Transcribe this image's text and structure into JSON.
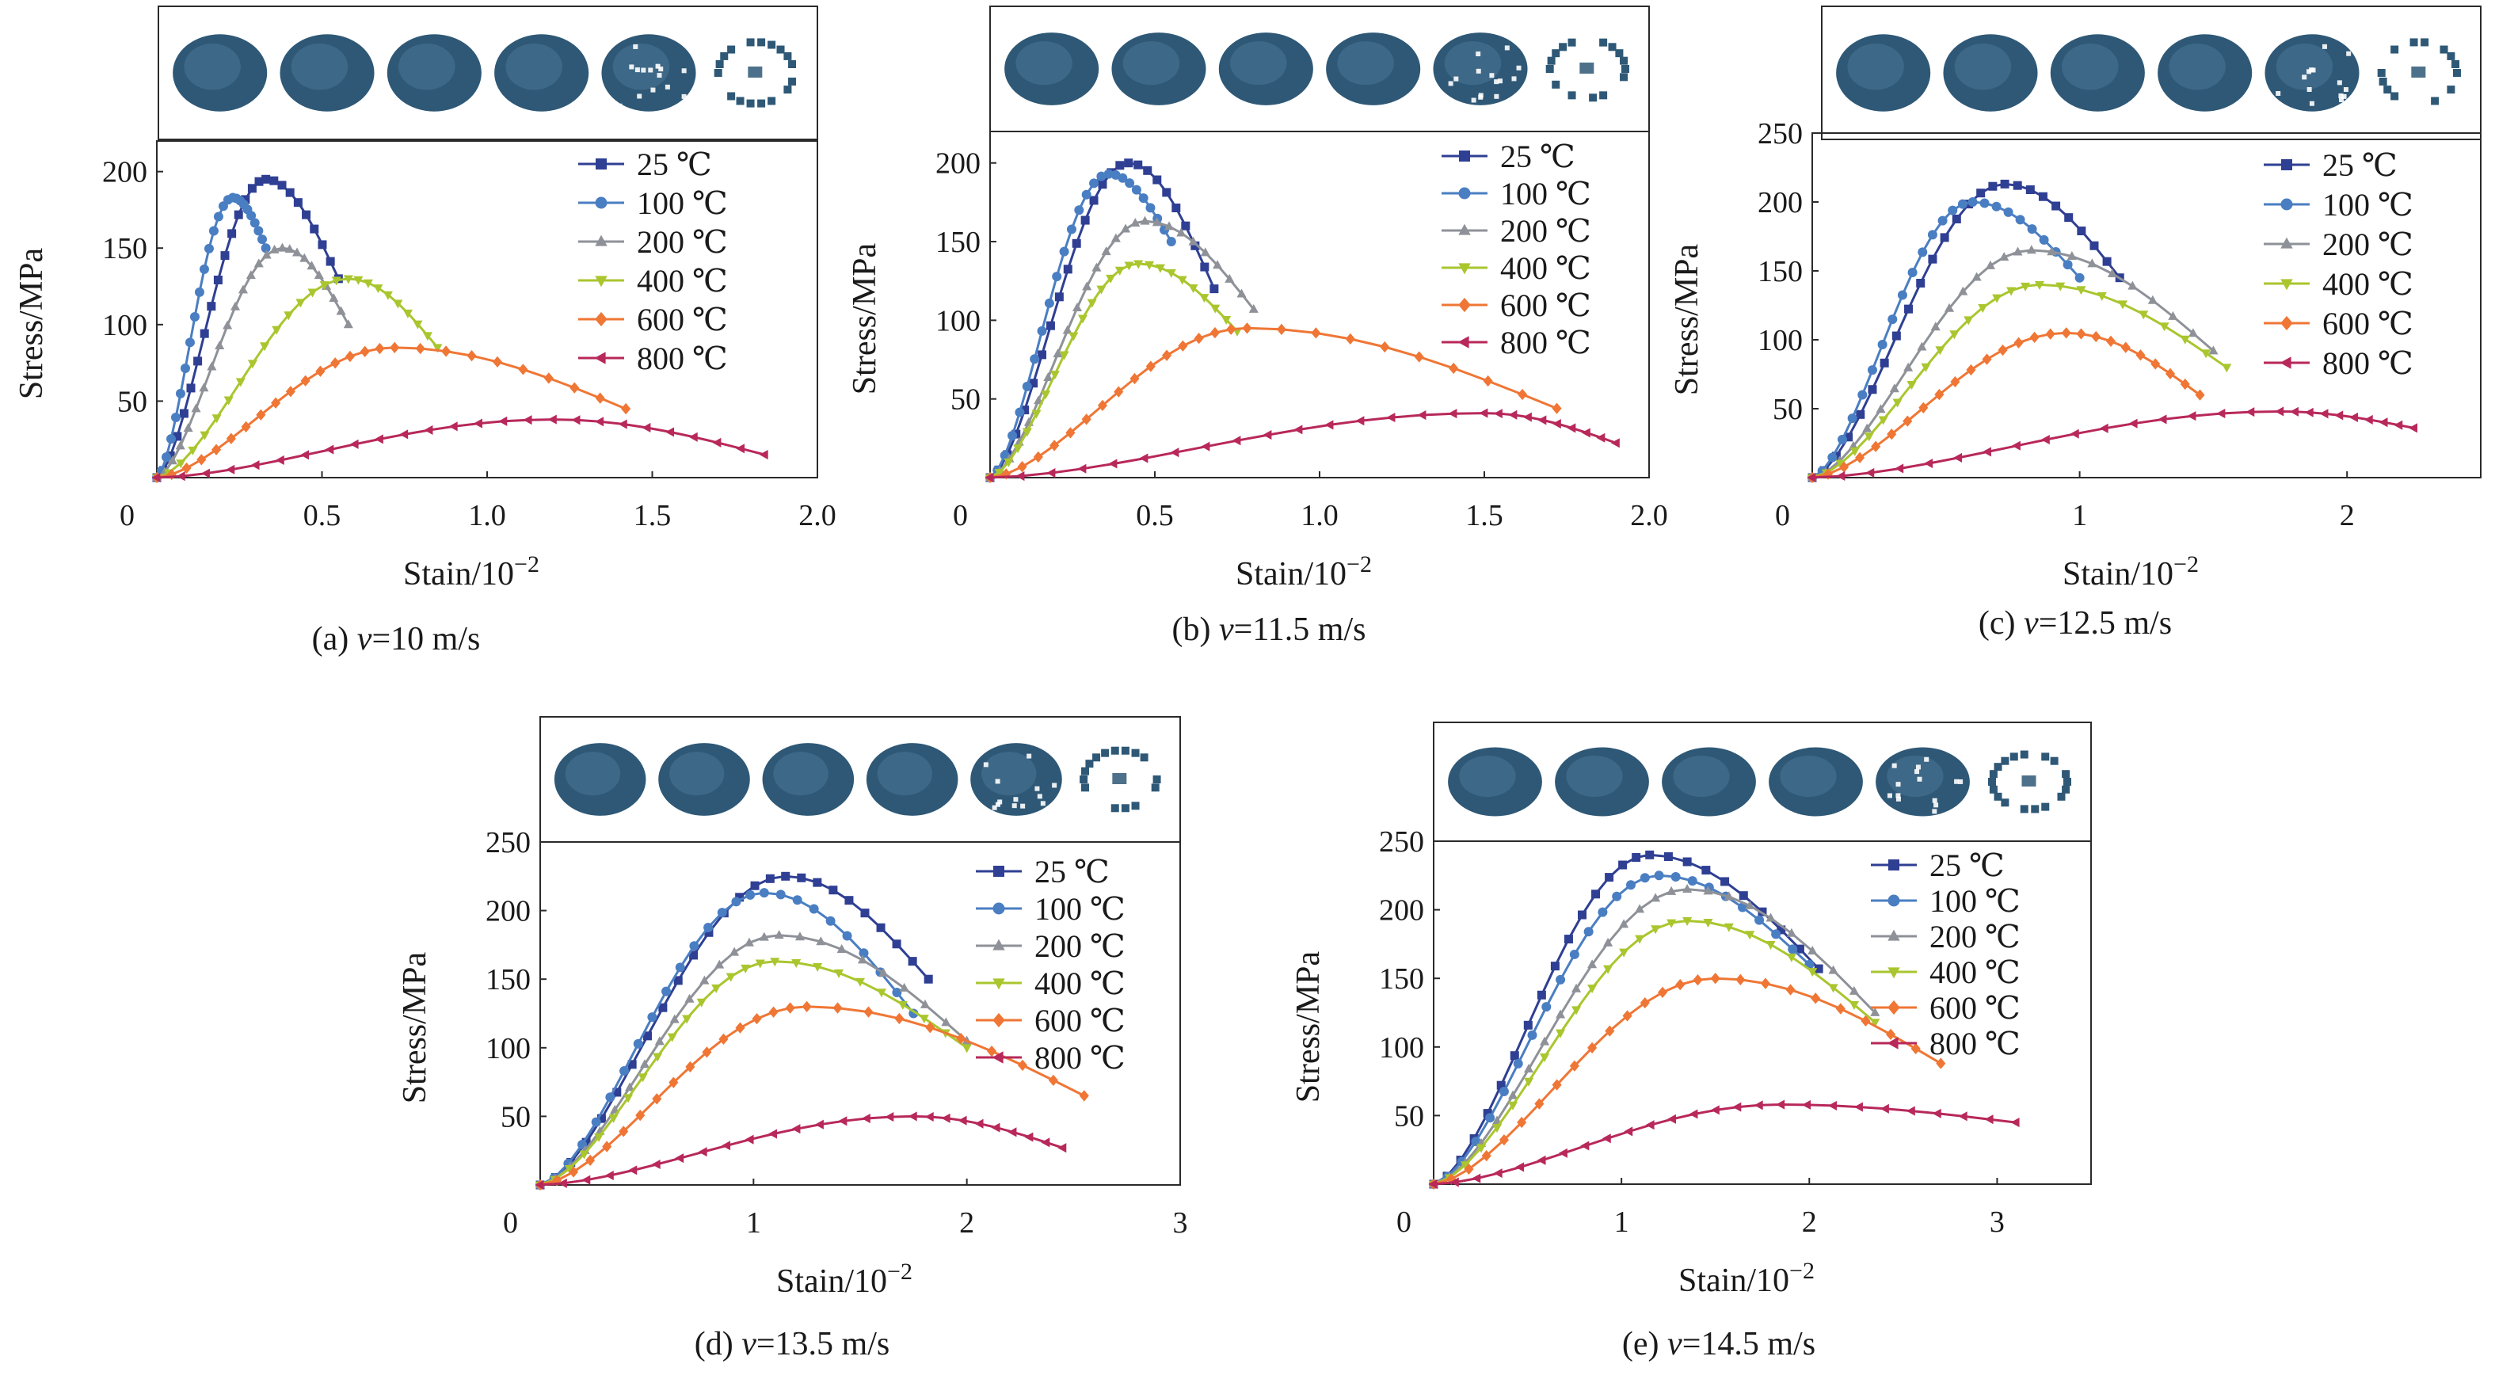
{
  "colors": {
    "25": "#2f3f93",
    "100": "#4a7ec2",
    "200": "#8e9298",
    "400": "#a9c62e",
    "600": "#ef7635",
    "800": "#b8285a",
    "specimen": "#2e5876"
  },
  "legend": {
    "t25": "25 ℃",
    "t100": "100 ℃",
    "t200": "200 ℃",
    "t400": "400 ℃",
    "t600": "600 ℃",
    "t800": "800 ℃"
  },
  "chart_data": [
    {
      "type": "line",
      "caption_prefix": "(a) ",
      "caption_var": "v",
      "caption_suffix": "=10 m/s",
      "xlabel": "Stain/10",
      "xlabel_sup": "−2",
      "ylabel": "Stress/MPa",
      "xlim": [
        0,
        2.0
      ],
      "ylim": [
        0,
        220
      ],
      "xticks": [
        "0",
        "0.5",
        "1.0",
        "1.5",
        "2.0"
      ],
      "xtick_values": [
        0,
        0.5,
        1.0,
        1.5,
        2.0
      ],
      "yticks": [
        "50",
        "100",
        "150",
        "200"
      ],
      "ytick_values": [
        50,
        100,
        150,
        200
      ],
      "legend_position": "top-right",
      "specimens": [
        "intact",
        "intact",
        "intact",
        "intact",
        "cracked",
        "fragmented"
      ],
      "series": [
        {
          "key": "25",
          "name": "25 ℃",
          "marker": "square",
          "peak_x": 0.33,
          "peak_y": 195,
          "end_x": 0.55,
          "end_y": 130
        },
        {
          "key": "100",
          "name": "100 ℃",
          "marker": "circle",
          "peak_x": 0.23,
          "peak_y": 183,
          "end_x": 0.33,
          "end_y": 150
        },
        {
          "key": "200",
          "name": "200 ℃",
          "marker": "triangle-up",
          "peak_x": 0.38,
          "peak_y": 150,
          "end_x": 0.58,
          "end_y": 100
        },
        {
          "key": "400",
          "name": "400 ℃",
          "marker": "triangle-down",
          "peak_x": 0.58,
          "peak_y": 130,
          "end_x": 0.85,
          "end_y": 85
        },
        {
          "key": "600",
          "name": "600 ℃",
          "marker": "diamond",
          "peak_x": 0.72,
          "peak_y": 85,
          "end_x": 1.42,
          "end_y": 45
        },
        {
          "key": "800",
          "name": "800 ℃",
          "marker": "triangle-left",
          "peak_x": 1.2,
          "peak_y": 38,
          "end_x": 1.84,
          "end_y": 15
        }
      ]
    },
    {
      "type": "line",
      "caption_prefix": "(b) ",
      "caption_var": "v",
      "caption_suffix": "=11.5 m/s",
      "xlabel": "Stain/10",
      "xlabel_sup": "−2",
      "ylabel": "Stress/MPa",
      "xlim": [
        0,
        2.0
      ],
      "ylim": [
        0,
        220
      ],
      "xticks": [
        "0",
        "0.5",
        "1.0",
        "1.5",
        "2.0"
      ],
      "xtick_values": [
        0,
        0.5,
        1.0,
        1.5,
        2.0
      ],
      "yticks": [
        "50",
        "100",
        "150",
        "200"
      ],
      "ytick_values": [
        50,
        100,
        150,
        200
      ],
      "legend_position": "top-right",
      "specimens": [
        "intact",
        "intact",
        "intact",
        "intact",
        "cracked",
        "fragmented"
      ],
      "series": [
        {
          "key": "25",
          "name": "25 ℃",
          "marker": "square",
          "peak_x": 0.42,
          "peak_y": 200,
          "end_x": 0.68,
          "end_y": 120
        },
        {
          "key": "100",
          "name": "100 ℃",
          "marker": "circle",
          "peak_x": 0.36,
          "peak_y": 193,
          "end_x": 0.55,
          "end_y": 150
        },
        {
          "key": "200",
          "name": "200 ℃",
          "marker": "triangle-up",
          "peak_x": 0.47,
          "peak_y": 163,
          "end_x": 0.8,
          "end_y": 107
        },
        {
          "key": "400",
          "name": "400 ℃",
          "marker": "triangle-down",
          "peak_x": 0.45,
          "peak_y": 136,
          "end_x": 0.75,
          "end_y": 93
        },
        {
          "key": "600",
          "name": "600 ℃",
          "marker": "diamond",
          "peak_x": 0.78,
          "peak_y": 95,
          "end_x": 1.72,
          "end_y": 44
        },
        {
          "key": "800",
          "name": "800 ℃",
          "marker": "triangle-left",
          "peak_x": 1.5,
          "peak_y": 41,
          "end_x": 1.9,
          "end_y": 22
        }
      ]
    },
    {
      "type": "line",
      "caption_prefix": "(c) ",
      "caption_var": "v",
      "caption_suffix": "=12.5 m/s",
      "xlabel": "Stain/10",
      "xlabel_sup": "−2",
      "ylabel": "Stress/MPa",
      "xlim": [
        0,
        2.5
      ],
      "ylim": [
        0,
        250
      ],
      "xticks": [
        "0",
        "1",
        "2"
      ],
      "xtick_values": [
        0,
        1,
        2
      ],
      "yticks": [
        "50",
        "100",
        "150",
        "200",
        "250"
      ],
      "ytick_values": [
        50,
        100,
        150,
        200,
        250
      ],
      "legend_position": "top-right",
      "specimens": [
        "intact",
        "intact",
        "intact",
        "intact",
        "cracked",
        "fragmented"
      ],
      "series": [
        {
          "key": "25",
          "name": "25 ℃",
          "marker": "square",
          "peak_x": 0.72,
          "peak_y": 213,
          "end_x": 1.15,
          "end_y": 145
        },
        {
          "key": "100",
          "name": "100 ℃",
          "marker": "circle",
          "peak_x": 0.6,
          "peak_y": 200,
          "end_x": 1.0,
          "end_y": 145
        },
        {
          "key": "200",
          "name": "200 ℃",
          "marker": "triangle-up",
          "peak_x": 0.82,
          "peak_y": 165,
          "end_x": 1.5,
          "end_y": 92
        },
        {
          "key": "400",
          "name": "400 ℃",
          "marker": "triangle-down",
          "peak_x": 0.85,
          "peak_y": 140,
          "end_x": 1.55,
          "end_y": 80
        },
        {
          "key": "600",
          "name": "600 ℃",
          "marker": "diamond",
          "peak_x": 0.95,
          "peak_y": 105,
          "end_x": 1.45,
          "end_y": 60
        },
        {
          "key": "800",
          "name": "800 ℃",
          "marker": "triangle-left",
          "peak_x": 1.75,
          "peak_y": 48,
          "end_x": 2.25,
          "end_y": 36
        }
      ]
    },
    {
      "type": "line",
      "caption_prefix": "(d) ",
      "caption_var": "v",
      "caption_suffix": "=13.5 m/s",
      "xlabel": "Stain/10",
      "xlabel_sup": "−2",
      "ylabel": "Stress/MPa",
      "xlim": [
        0,
        3
      ],
      "ylim": [
        0,
        250
      ],
      "xticks": [
        "0",
        "1",
        "2",
        "3"
      ],
      "xtick_values": [
        0,
        1,
        2,
        3
      ],
      "yticks": [
        "50",
        "100",
        "150",
        "200",
        "250"
      ],
      "ytick_values": [
        50,
        100,
        150,
        200,
        250
      ],
      "legend_position": "top-right",
      "specimens": [
        "intact",
        "intact",
        "intact",
        "intact",
        "cracked",
        "fragmented"
      ],
      "series": [
        {
          "key": "25",
          "name": "25 ℃",
          "marker": "square",
          "peak_x": 1.15,
          "peak_y": 225,
          "end_x": 1.82,
          "end_y": 150
        },
        {
          "key": "100",
          "name": "100 ℃",
          "marker": "circle",
          "peak_x": 1.05,
          "peak_y": 213,
          "end_x": 1.75,
          "end_y": 125
        },
        {
          "key": "200",
          "name": "200 ℃",
          "marker": "triangle-up",
          "peak_x": 1.12,
          "peak_y": 182,
          "end_x": 2.0,
          "end_y": 105
        },
        {
          "key": "400",
          "name": "400 ℃",
          "marker": "triangle-down",
          "peak_x": 1.1,
          "peak_y": 163,
          "end_x": 2.0,
          "end_y": 100
        },
        {
          "key": "600",
          "name": "600 ℃",
          "marker": "diamond",
          "peak_x": 1.25,
          "peak_y": 130,
          "end_x": 2.55,
          "end_y": 65
        },
        {
          "key": "800",
          "name": "800 ℃",
          "marker": "triangle-left",
          "peak_x": 1.75,
          "peak_y": 50,
          "end_x": 2.45,
          "end_y": 27
        }
      ]
    },
    {
      "type": "line",
      "caption_prefix": "(e) ",
      "caption_var": "v",
      "caption_suffix": "=14.5 m/s",
      "xlabel": "Stain/10",
      "xlabel_sup": "−2",
      "ylabel": "Stress/MPa",
      "xlim": [
        0,
        3.5
      ],
      "ylim": [
        0,
        250
      ],
      "xticks": [
        "0",
        "1",
        "2",
        "3"
      ],
      "xtick_values": [
        0,
        1,
        2,
        3
      ],
      "yticks": [
        "50",
        "100",
        "150",
        "200",
        "250"
      ],
      "ytick_values": [
        50,
        100,
        150,
        200,
        250
      ],
      "legend_position": "top-right",
      "specimens": [
        "intact",
        "intact",
        "intact",
        "intact",
        "cracked",
        "fragmented"
      ],
      "series": [
        {
          "key": "25",
          "name": "25 ℃",
          "marker": "square",
          "peak_x": 1.15,
          "peak_y": 240,
          "end_x": 2.05,
          "end_y": 157
        },
        {
          "key": "100",
          "name": "100 ℃",
          "marker": "circle",
          "peak_x": 1.2,
          "peak_y": 225,
          "end_x": 2.0,
          "end_y": 160
        },
        {
          "key": "200",
          "name": "200 ℃",
          "marker": "triangle-up",
          "peak_x": 1.35,
          "peak_y": 215,
          "end_x": 2.35,
          "end_y": 125
        },
        {
          "key": "400",
          "name": "400 ℃",
          "marker": "triangle-down",
          "peak_x": 1.35,
          "peak_y": 192,
          "end_x": 2.35,
          "end_y": 118
        },
        {
          "key": "600",
          "name": "600 ℃",
          "marker": "diamond",
          "peak_x": 1.5,
          "peak_y": 150,
          "end_x": 2.7,
          "end_y": 88
        },
        {
          "key": "800",
          "name": "800 ℃",
          "marker": "triangle-left",
          "peak_x": 1.85,
          "peak_y": 58,
          "end_x": 3.1,
          "end_y": 45
        }
      ]
    }
  ]
}
